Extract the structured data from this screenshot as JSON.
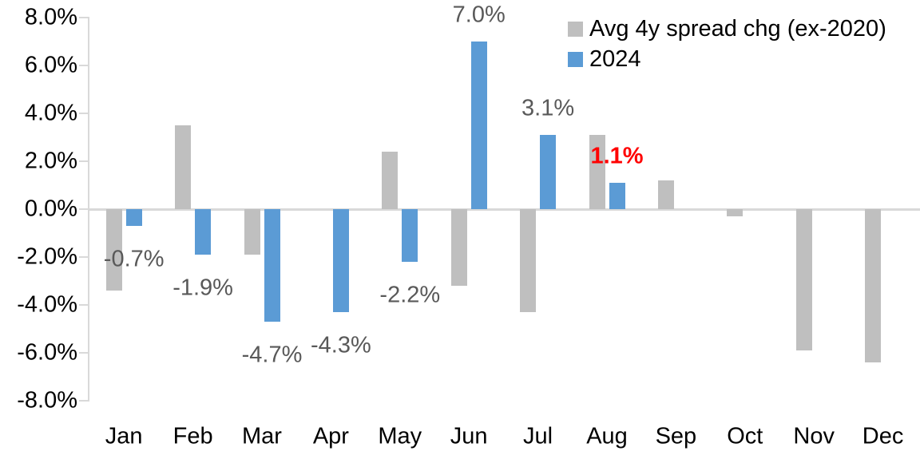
{
  "chart_data": {
    "type": "bar",
    "title": "",
    "xlabel": "",
    "ylabel": "",
    "categories": [
      "Jan",
      "Feb",
      "Mar",
      "Apr",
      "May",
      "Jun",
      "Jul",
      "Aug",
      "Sep",
      "Oct",
      "Nov",
      "Dec"
    ],
    "series": [
      {
        "name": "Avg 4y spread chg (ex-2020)",
        "color": "#BFBFBF",
        "values": [
          -3.4,
          3.5,
          -1.9,
          0.0,
          2.4,
          -3.2,
          -4.3,
          3.1,
          1.2,
          -0.3,
          -5.9,
          -6.4
        ]
      },
      {
        "name": "2024",
        "color": "#5B9BD5",
        "values": [
          -0.7,
          -1.9,
          -4.7,
          -4.3,
          -2.2,
          7.0,
          3.1,
          1.1,
          null,
          null,
          null,
          null
        ]
      }
    ],
    "data_labels": [
      {
        "month_index": 0,
        "text": "-0.7%",
        "color": "#595959",
        "bold": false
      },
      {
        "month_index": 1,
        "text": "-1.9%",
        "color": "#595959",
        "bold": false
      },
      {
        "month_index": 2,
        "text": "-4.7%",
        "color": "#595959",
        "bold": false
      },
      {
        "month_index": 3,
        "text": "-4.3%",
        "color": "#595959",
        "bold": false
      },
      {
        "month_index": 4,
        "text": "-2.2%",
        "color": "#595959",
        "bold": false
      },
      {
        "month_index": 5,
        "text": "7.0%",
        "color": "#595959",
        "bold": false
      },
      {
        "month_index": 6,
        "text": "3.1%",
        "color": "#595959",
        "bold": false
      },
      {
        "month_index": 7,
        "text": "1.1%",
        "color": "#FF0000",
        "bold": true
      }
    ],
    "y_axis": {
      "min": -8,
      "max": 8,
      "step": 2,
      "tick_labels": [
        "8.0%",
        "6.0%",
        "4.0%",
        "2.0%",
        "0.0%",
        "-2.0%",
        "-4.0%",
        "-6.0%",
        "-8.0%"
      ],
      "tick_values": [
        8,
        6,
        4,
        2,
        0,
        -2,
        -4,
        -6,
        -8
      ]
    },
    "legend": {
      "position": "top-right",
      "entries": [
        {
          "label": "Avg 4y spread chg (ex-2020)",
          "color": "#BFBFBF"
        },
        {
          "label": "2024",
          "color": "#5B9BD5"
        }
      ]
    },
    "grid": false,
    "axis_color": "#D9D9D9",
    "axis_text_color": "#000000"
  }
}
